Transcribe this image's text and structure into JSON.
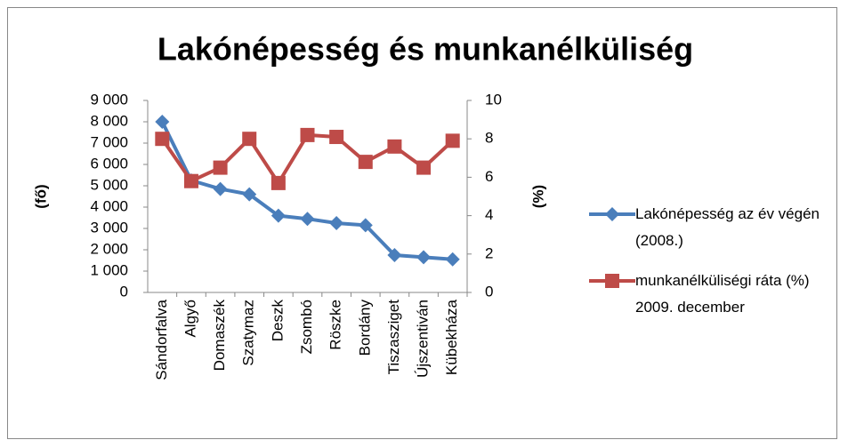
{
  "chart_data": {
    "type": "line",
    "title": "Lakónépesség és munkanélküliség",
    "y_label": "(fő)",
    "y2_label": "(%)",
    "categories": [
      "Sándorfalva",
      "Algyő",
      "Domaszék",
      "Szatymaz",
      "Deszk",
      "Zsombó",
      "Röszke",
      "Bordány",
      "Tiszasziget",
      "Újszentiván",
      "Kübekháza"
    ],
    "series": [
      {
        "name": "Lakónépesség az év végén (2008.)",
        "color": "#4a7ebb",
        "marker": "diamond",
        "values": [
          8000,
          5250,
          4850,
          4600,
          3600,
          3450,
          3250,
          3150,
          1750,
          1650,
          1550
        ]
      },
      {
        "name": "munkanélküliségi ráta (%) 2009. december",
        "color": "#be4b48",
        "marker": "square",
        "axis": "y2",
        "values": [
          8.0,
          5.8,
          6.5,
          8.0,
          5.7,
          8.2,
          8.1,
          6.8,
          7.6,
          6.5,
          7.9
        ]
      }
    ],
    "ylim": [
      0,
      9000
    ],
    "yticks": [
      0,
      {
        "value": 1000,
        "label": "1 000"
      },
      {
        "value": 2000,
        "label": "2 000"
      },
      {
        "value": 3000,
        "label": "3 000"
      },
      {
        "value": 4000,
        "label": "4 000"
      },
      {
        "value": 5000,
        "label": "5 000"
      },
      {
        "value": 6000,
        "label": "6 000"
      },
      {
        "value": 7000,
        "label": "7 000"
      },
      {
        "value": 8000,
        "label": "8 000"
      },
      {
        "value": 9000,
        "label": "9 000"
      }
    ],
    "y2lim": [
      0,
      10
    ],
    "y2ticks": [
      0,
      2,
      4,
      6,
      8,
      10
    ],
    "legend": "right",
    "grid": false
  }
}
